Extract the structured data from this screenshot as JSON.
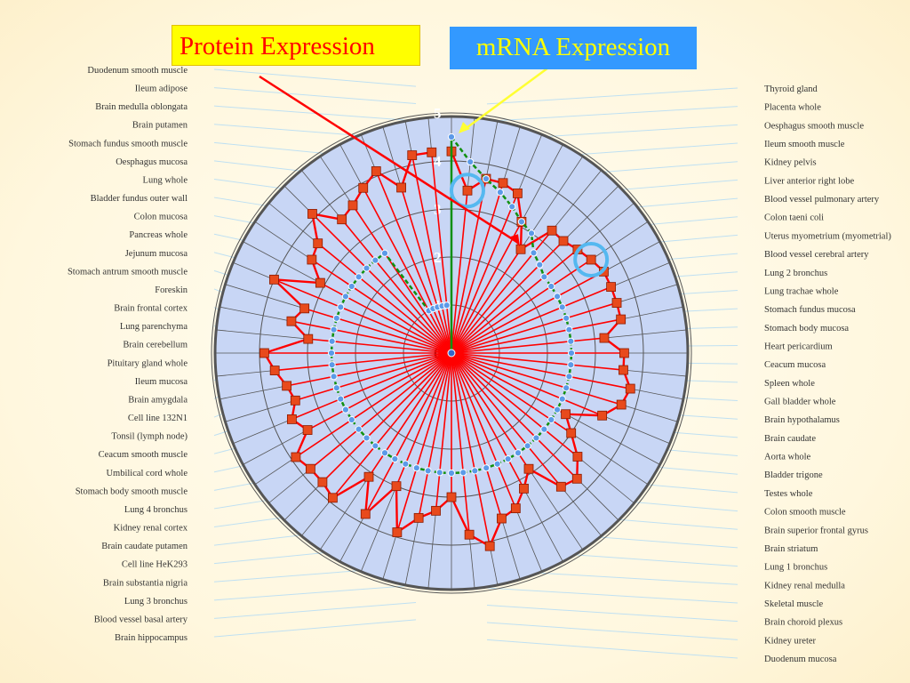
{
  "chart_data": {
    "type": "radar",
    "legend": {
      "protein_label": "Protein Expression",
      "mrna_label": "mRNA Expression",
      "protein_color": "#ff0000",
      "mrna_color": "#3399ff"
    },
    "radial_axis": {
      "ticks": [
        "0",
        "1",
        "2",
        "3",
        "4",
        "5"
      ],
      "range": [
        0,
        5
      ]
    },
    "left_labels": [
      "Duodenum smooth muscle",
      "Ileum adipose",
      "Brain medulla oblongata",
      "Brain putamen",
      "Stomach fundus smooth muscle",
      "Oesphagus mucosa",
      "Lung whole",
      "Bladder fundus outer wall",
      "Colon mucosa",
      "Pancreas whole",
      "Jejunum mucosa",
      "Stomach antrum smooth muscle",
      "Foreskin",
      "Brain frontal cortex",
      "Lung parenchyma",
      "Brain cerebellum",
      "Pituitary gland whole",
      "Ileum mucosa",
      "Brain amygdala",
      "Cell line 132N1",
      "Tonsil (lymph node)",
      "Ceacum smooth muscle",
      "Umbilical cord whole",
      "Stomach body smooth muscle",
      "Lung 4 bronchus",
      "Kidney renal cortex",
      "Brain caudate putamen",
      "Cell line HeK293",
      "Brain substantia nigria",
      "Lung 3 bronchus",
      "Blood vessel basal artery",
      "Brain hippocampus"
    ],
    "right_labels": [
      "Thyroid gland",
      "Placenta whole",
      "Oesphagus smooth muscle",
      "Ileum smooth muscle",
      "Kidney pelvis",
      "Liver anterior right lobe",
      "Blood vessel pulmonary artery",
      "Colon taeni coli",
      "Uterus myometrium (myometrial)",
      "Blood vessel cerebral artery",
      "Lung 2 bronchus",
      "Lung trachae whole",
      "Stomach fundus mucosa",
      "Stomach body mucosa",
      "Heart pericardium",
      "Ceacum mucosa",
      "Spleen whole",
      "Gall bladder whole",
      "Brain hypothalamus",
      "Brain caudate",
      "Aorta whole",
      "Bladder trigone",
      "Testes whole",
      "Colon smooth muscle",
      "Brain superior frontal gyrus",
      "Brain striatum",
      "Lung 1 bronchus",
      "Kidney renal medulla",
      "Skeletal muscle",
      "Brain choroid plexus",
      "Kidney ureter",
      "Duodenum mucosa"
    ],
    "protein_series": {
      "name": "Protein Expression",
      "values": [
        4.2,
        3.4,
        3.7,
        3.7,
        3.6,
        3.1,
        2.6,
        3.3,
        3.3,
        3.4,
        3.5,
        3.6,
        3.6,
        3.6,
        3.6,
        3.2,
        3.6,
        3.6,
        3.8,
        3.7,
        3.4,
        2.7,
        3.0,
        3.4,
        3.7,
        3.6,
        2.9,
        3.2,
        3.5,
        3.6,
        4.1,
        3.8,
        3.0,
        3.3,
        3.5,
        3.9,
        3.0,
        3.8,
        3.1,
        3.9,
        3.8,
        3.8,
        3.9,
        3.4,
        3.6,
        3.4,
        3.5,
        3.7,
        3.9,
        3.0,
        3.4,
        3.2,
        4.0,
        3.1,
        3.5,
        3.6,
        4.1,
        3.6,
        3.7,
        3.9,
        4.1,
        3.6,
        4.2,
        4.2
      ]
    },
    "mrna_series": {
      "name": "mRNA Expression",
      "values": [
        4.5,
        4.0,
        3.7,
        3.5,
        3.3,
        3.1,
        3.0,
        2.7,
        2.6,
        2.5,
        2.5,
        2.5,
        2.5,
        2.5,
        2.5,
        2.5,
        2.5,
        2.5,
        2.5,
        2.5,
        2.5,
        2.5,
        2.5,
        2.5,
        2.5,
        2.5,
        2.5,
        2.5,
        2.5,
        2.5,
        2.5,
        2.5,
        2.5,
        2.5,
        2.5,
        2.5,
        2.5,
        2.5,
        2.5,
        2.5,
        2.5,
        2.5,
        2.5,
        2.5,
        2.5,
        2.5,
        2.5,
        2.5,
        2.5,
        2.5,
        2.5,
        2.5,
        2.5,
        2.5,
        2.5,
        2.5,
        2.5,
        2.5,
        2.5,
        1.0,
        1.0,
        1.0,
        1.0,
        1.0
      ]
    },
    "highlight_circles": [
      1,
      10
    ]
  }
}
